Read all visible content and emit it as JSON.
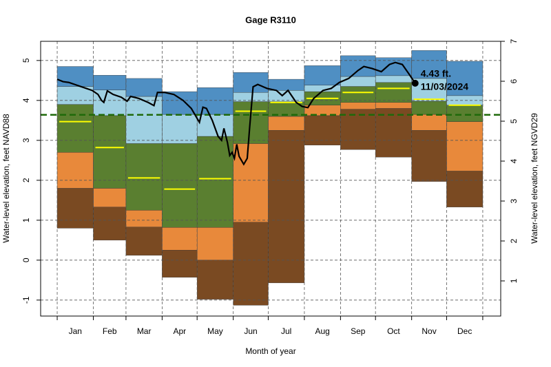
{
  "chart_data": {
    "type": "band",
    "title": "Gage R3110",
    "xlabel": "Month of year",
    "ylabel": "Water-level elevation, feet NAVD88",
    "y2label": "Water-level elevation, feet NGVD29",
    "categories": [
      "Jan",
      "Feb",
      "Mar",
      "Apr",
      "May",
      "Jun",
      "Jul",
      "Aug",
      "Sep",
      "Oct",
      "Nov",
      "Dec"
    ],
    "xlim": [
      -14.2,
      380.4
    ],
    "xticks": [
      0,
      31,
      59,
      90,
      120,
      151,
      181,
      212,
      243,
      273,
      304,
      334,
      365
    ],
    "ylim": [
      -1.4,
      5.48
    ],
    "yticks": [
      -1,
      0,
      1,
      2,
      3,
      4,
      5
    ],
    "y2lim": [
      0.12,
      7.0
    ],
    "y2ticks": [
      1,
      2,
      3,
      4,
      5,
      6,
      7
    ],
    "grid": true,
    "series": [
      {
        "values": [
          0.8,
          0.5,
          0.12,
          -0.43,
          -0.98,
          -1.13,
          -0.57,
          2.88,
          2.77,
          2.58,
          1.97,
          1.33
        ]
      },
      {
        "color": "#7a4a22",
        "values": [
          1.8,
          1.33,
          0.83,
          0.25,
          0.0,
          0.95,
          3.25,
          3.62,
          3.78,
          3.8,
          3.25,
          2.23
        ]
      },
      {
        "color": "#e8893b",
        "values": [
          2.7,
          1.8,
          1.25,
          0.82,
          0.82,
          2.92,
          3.6,
          3.88,
          3.95,
          3.95,
          3.65,
          3.47
        ]
      },
      {
        "color": "#5a7f30",
        "values": [
          3.9,
          3.62,
          2.92,
          2.92,
          3.1,
          3.97,
          3.97,
          4.22,
          4.35,
          4.45,
          3.98,
          3.88
        ]
      },
      {
        "color": "#9fd0e2",
        "values": [
          4.35,
          4.26,
          4.1,
          3.65,
          3.65,
          4.2,
          4.25,
          4.38,
          4.6,
          4.62,
          4.55,
          4.12
        ]
      },
      {
        "color": "#4f8fc3",
        "values": [
          4.85,
          4.63,
          4.55,
          4.22,
          4.32,
          4.7,
          4.53,
          4.87,
          5.12,
          5.07,
          5.25,
          4.98
        ]
      }
    ],
    "median": {
      "color": "#ffff00",
      "values": [
        3.47,
        2.82,
        2.06,
        1.78,
        2.04,
        3.73,
        3.95,
        4.05,
        4.2,
        4.3,
        4.03,
        3.88
      ]
    },
    "reference": {
      "color": "#1f6a0a",
      "value": 3.64
    },
    "line": {
      "color": "#000000",
      "x": [
        0,
        5,
        10,
        15,
        20,
        25,
        30,
        35,
        38,
        40,
        43,
        48,
        55,
        60,
        63,
        70,
        78,
        83,
        86,
        92,
        100,
        108,
        115,
        120,
        122,
        125,
        128,
        133,
        138,
        141,
        143,
        146,
        148,
        150,
        152,
        154,
        156,
        158,
        160,
        163,
        165,
        168,
        172,
        180,
        188,
        193,
        198,
        205,
        210,
        215,
        220,
        228,
        235,
        242,
        250,
        258,
        263,
        270,
        278,
        285,
        290,
        296,
        302,
        307
      ],
      "y": [
        4.53,
        4.47,
        4.45,
        4.4,
        4.35,
        4.3,
        4.25,
        4.15,
        4.0,
        3.95,
        4.24,
        4.15,
        4.08,
        3.98,
        4.1,
        4.05,
        3.95,
        3.87,
        4.2,
        4.2,
        4.15,
        4.0,
        3.8,
        3.55,
        3.45,
        3.83,
        3.8,
        3.5,
        3.1,
        3.0,
        3.3,
        2.95,
        2.62,
        2.7,
        2.55,
        2.9,
        2.6,
        2.5,
        2.4,
        2.55,
        3.3,
        4.34,
        4.4,
        4.3,
        4.25,
        4.12,
        4.25,
        3.95,
        3.85,
        3.82,
        4.05,
        4.25,
        4.3,
        4.45,
        4.55,
        4.75,
        4.85,
        4.8,
        4.72,
        4.9,
        4.95,
        4.9,
        4.65,
        4.43
      ]
    },
    "annotation": [
      "4.43 ft.",
      "11/03/2024"
    ]
  }
}
